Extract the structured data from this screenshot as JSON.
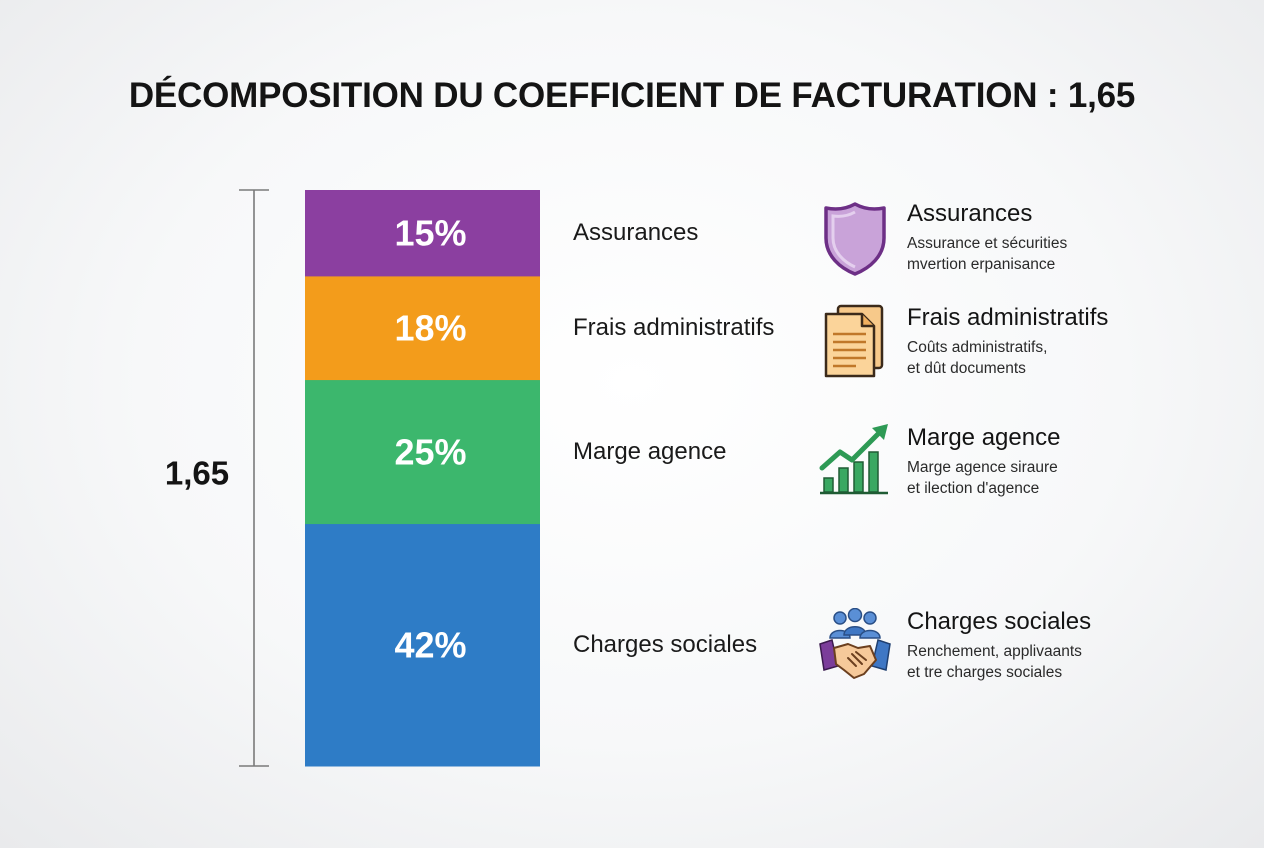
{
  "chart_data": {
    "type": "bar",
    "stacked": true,
    "title": "DÉCOMPOSITION DU COEFFICIENT DE FACTURATION : 1,65",
    "total_label": "1,65",
    "series": [
      {
        "name": "Assurances",
        "value": 15,
        "label": "15%",
        "color": "#8b3fa0"
      },
      {
        "name": "Frais administratifs",
        "value": 18,
        "label": "18%",
        "color": "#f39c1b"
      },
      {
        "name": "Marge agence",
        "value": 25,
        "label": "25%",
        "color": "#3cb76d"
      },
      {
        "name": "Charges sociales",
        "value": 42,
        "label": "42%",
        "color": "#2e7cc6"
      }
    ]
  },
  "legend": [
    {
      "icon": "shield-icon",
      "title": "Assurances",
      "desc": [
        "Assurance et sécurities",
        "mvertion erpanisance"
      ]
    },
    {
      "icon": "documents-icon",
      "title": "Frais administratifs",
      "desc": [
        "Coûts administratifs,",
        "et dût documents"
      ]
    },
    {
      "icon": "growth-chart-icon",
      "title": "Marge agence",
      "desc": [
        "Marge agence siraure",
        "et ilection d'agence"
      ]
    },
    {
      "icon": "handshake-icon",
      "title": "Charges sociales",
      "desc": [
        "Renchement, applivaants",
        "et tre charges sociales"
      ]
    }
  ]
}
